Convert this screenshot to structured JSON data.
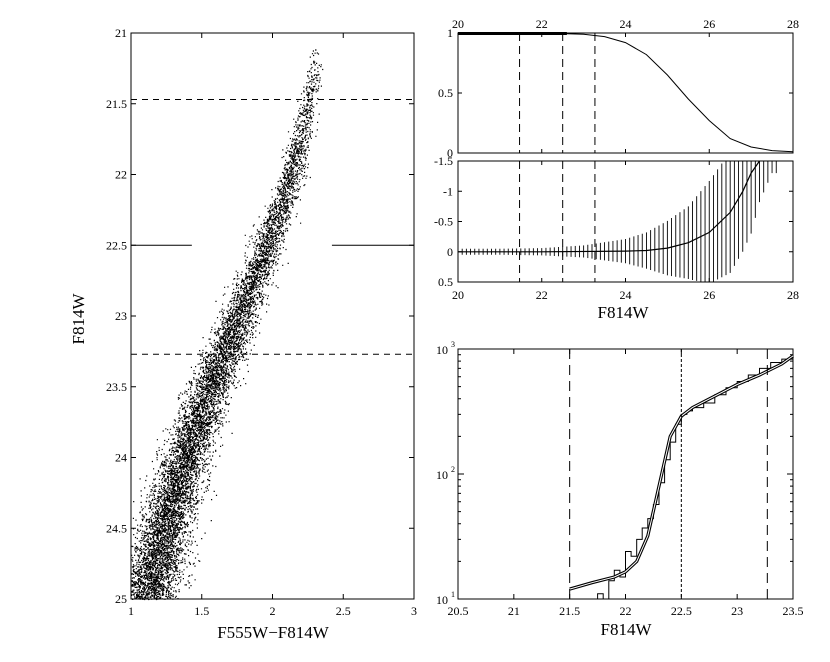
{
  "chart_data": [
    {
      "panel": "cmd",
      "type": "scatter",
      "xlabel": "F555W−F814W",
      "ylabel": "F814W",
      "xlim": [
        1,
        3
      ],
      "ylim": [
        25,
        21
      ],
      "y_inverted": true,
      "xticks": [
        "1",
        "1.5",
        "2",
        "2.5",
        "3"
      ],
      "yticks": [
        "21",
        "21.5",
        "22",
        "22.5",
        "23",
        "23.5",
        "24",
        "24.5",
        "25"
      ],
      "sequence_ridge": {
        "mag": [
          21.1,
          21.5,
          22.0,
          22.5,
          23.0,
          23.5,
          24.0,
          24.5,
          25.0
        ],
        "color": [
          2.32,
          2.25,
          2.13,
          1.96,
          1.76,
          1.56,
          1.38,
          1.24,
          1.1
        ]
      },
      "dashed_lines_mag": [
        21.47,
        23.27
      ],
      "long_dash_line_mag": 22.5
    },
    {
      "panel": "completeness",
      "type": "line",
      "xlim": [
        20,
        28
      ],
      "ylim": [
        0,
        1
      ],
      "xticks": [
        "20",
        "22",
        "24",
        "26",
        "28"
      ],
      "yticks": [
        "0",
        "0.5",
        "1"
      ],
      "x": [
        20,
        22,
        23,
        23.5,
        24,
        24.5,
        25,
        25.5,
        26,
        26.5,
        27,
        27.5,
        28
      ],
      "y": [
        1.0,
        1.0,
        0.99,
        0.97,
        0.92,
        0.82,
        0.65,
        0.45,
        0.27,
        0.12,
        0.05,
        0.02,
        0.01
      ],
      "vlines_x": [
        21.47,
        22.5,
        23.27
      ]
    },
    {
      "panel": "bias",
      "type": "line",
      "xlabel": "F814W",
      "xlim": [
        20,
        28
      ],
      "ylim": [
        0.5,
        -1.5
      ],
      "y_inverted": true,
      "xticks": [
        "20",
        "22",
        "24",
        "26",
        "28"
      ],
      "yticks": [
        "-1.5",
        "-1",
        "-0.5",
        "0",
        "0.5"
      ],
      "x": [
        20,
        22,
        24,
        24.5,
        25,
        25.5,
        26,
        26.5,
        26.8,
        27,
        27.2
      ],
      "y": [
        0.0,
        0.0,
        -0.01,
        -0.02,
        -0.06,
        -0.15,
        -0.32,
        -0.65,
        -1.0,
        -1.3,
        -1.5
      ],
      "errors": {
        "x": [
          20,
          21,
          22,
          23,
          23.5,
          24,
          24.5,
          25,
          25.5,
          26,
          26.5,
          27,
          27.5
        ],
        "err": [
          0.05,
          0.05,
          0.06,
          0.1,
          0.15,
          0.2,
          0.3,
          0.45,
          0.6,
          0.85,
          1.0,
          1.0,
          0.2
        ]
      },
      "vlines_x": [
        21.47,
        22.5,
        23.27
      ]
    },
    {
      "panel": "luminosity-function",
      "type": "line",
      "xlabel": "F814W",
      "xlim": [
        20.5,
        23.5
      ],
      "ylog": true,
      "ylim": [
        10,
        1000
      ],
      "xticks": [
        "20.5",
        "21",
        "21.5",
        "22",
        "22.5",
        "23",
        "23.5"
      ],
      "ytick_labels": [
        {
          "base": "10",
          "exp": "1"
        },
        {
          "base": "10",
          "exp": "2"
        },
        {
          "base": "10",
          "exp": "3"
        }
      ],
      "model_curve": {
        "x": [
          21.5,
          21.7,
          21.9,
          22.0,
          22.1,
          22.2,
          22.3,
          22.4,
          22.5,
          22.6,
          22.8,
          23.0,
          23.2,
          23.4,
          23.5
        ],
        "y": [
          12,
          13.5,
          15,
          16.5,
          20,
          32,
          80,
          200,
          290,
          340,
          420,
          520,
          620,
          760,
          880
        ]
      },
      "histogram": {
        "bin_edges": [
          21.5,
          21.6,
          21.65,
          21.7,
          21.75,
          21.8,
          21.85,
          21.9,
          21.95,
          22.0,
          22.05,
          22.1,
          22.15,
          22.2,
          22.25,
          22.3,
          22.35,
          22.4,
          22.45,
          22.5,
          22.55,
          22.6,
          22.7,
          22.8,
          22.9,
          23.0,
          23.1,
          23.2,
          23.3,
          23.4,
          23.5
        ],
        "counts": [
          9,
          9,
          10,
          9,
          11,
          10,
          14,
          17,
          15,
          24,
          22,
          30,
          37,
          44,
          57,
          85,
          130,
          180,
          250,
          300,
          320,
          340,
          370,
          430,
          490,
          550,
          620,
          700,
          780,
          830
        ]
      },
      "vlines_x": [
        21.5,
        22.5,
        23.27
      ]
    }
  ]
}
